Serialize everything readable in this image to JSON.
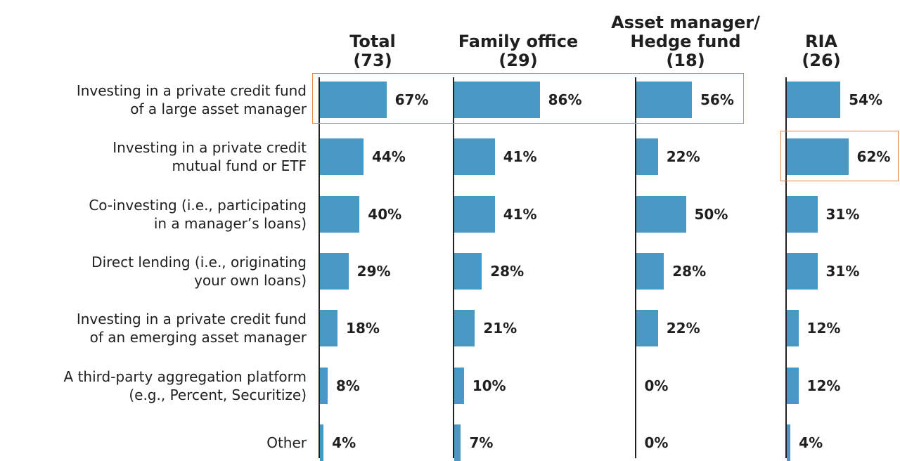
{
  "chart_data": {
    "type": "bar",
    "categories": [
      "Investing in a private credit fund\nof a large asset manager",
      "Investing in a private credit\nmutual fund or ETF",
      "Co-investing (i.e., participating\nin a manager’s loans)",
      "Direct lending (i.e., originating\nyour own loans)",
      "Investing in a private credit fund\nof an emerging asset manager",
      "A third-party aggregation platform\n(e.g., Percent, Securitize)",
      "Other"
    ],
    "series": [
      {
        "name": "Total",
        "sample": "(73)",
        "color": "#4a98c6",
        "values": [
          67,
          44,
          40,
          29,
          18,
          8,
          4
        ],
        "value_labels": [
          "67%",
          "44%",
          "40%",
          "29%",
          "18%",
          "8%",
          "4%"
        ]
      },
      {
        "name": "Family office",
        "sample": "(29)",
        "color": "#4a98c6",
        "values": [
          86,
          41,
          41,
          28,
          21,
          10,
          7
        ],
        "value_labels": [
          "86%",
          "41%",
          "41%",
          "28%",
          "21%",
          "10%",
          "7%"
        ]
      },
      {
        "name": "Asset manager/\nHedge fund",
        "sample": "(18)",
        "color": "#4a98c6",
        "values": [
          56,
          22,
          50,
          28,
          22,
          0,
          0
        ],
        "value_labels": [
          "56%",
          "22%",
          "50%",
          "28%",
          "22%",
          "0%",
          "0%"
        ]
      },
      {
        "name": "RIA",
        "sample": "(26)",
        "color": "#4a98c6",
        "values": [
          54,
          62,
          31,
          31,
          12,
          12,
          4
        ],
        "value_labels": [
          "54%",
          "62%",
          "31%",
          "31%",
          "12%",
          "12%",
          "4%"
        ]
      }
    ]
  }
}
